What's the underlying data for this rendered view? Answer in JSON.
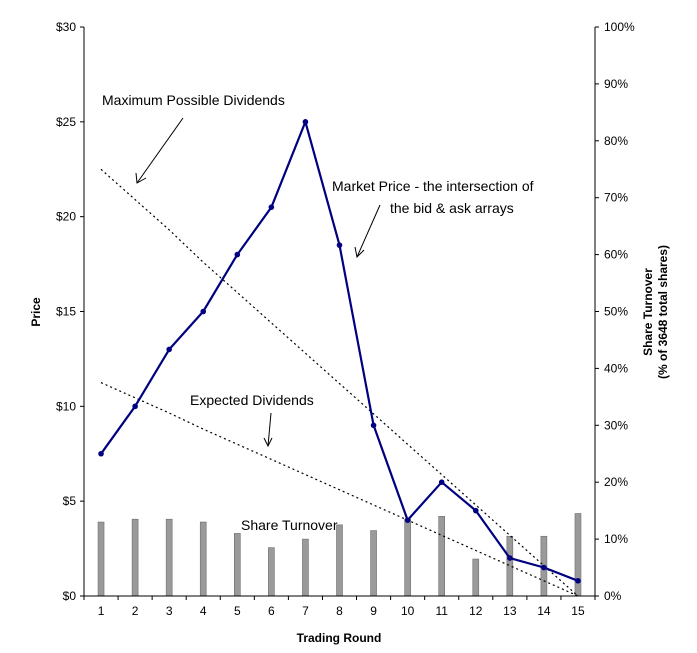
{
  "chart_data": {
    "type": "line",
    "categories": [
      "1",
      "2",
      "3",
      "4",
      "5",
      "6",
      "7",
      "8",
      "9",
      "10",
      "11",
      "12",
      "13",
      "14",
      "15"
    ],
    "xlabel": "Trading Round",
    "ylabel": "Price",
    "y2label_line1": "Share Turnover",
    "y2label_line2": "(% of 3648 total shares)",
    "ylim": [
      0,
      30
    ],
    "y_ticks": [
      0,
      5,
      10,
      15,
      20,
      25,
      30
    ],
    "y_tick_labels": [
      "$0",
      "$5",
      "$10",
      "$15",
      "$20",
      "$25",
      "$30"
    ],
    "y2lim": [
      0,
      100
    ],
    "y2_ticks": [
      0,
      10,
      20,
      30,
      40,
      50,
      60,
      70,
      80,
      90,
      100
    ],
    "y2_tick_labels": [
      "0%",
      "10%",
      "20%",
      "30%",
      "40%",
      "50%",
      "60%",
      "70%",
      "80%",
      "90%",
      "100%"
    ],
    "series": [
      {
        "name": "Market Price",
        "kind": "line",
        "axis": "left",
        "color": "#000080",
        "values": [
          7.5,
          10.0,
          13.0,
          15.0,
          18.0,
          20.5,
          25.0,
          18.5,
          9.0,
          4.0,
          6.0,
          4.5,
          2.0,
          1.5,
          0.8
        ]
      },
      {
        "name": "Maximum Possible Dividends",
        "kind": "dotted",
        "axis": "left",
        "color": "#000000",
        "values": [
          22.5,
          20.9,
          19.3,
          17.6,
          16.0,
          14.4,
          12.8,
          11.2,
          9.6,
          8.0,
          6.4,
          4.8,
          3.2,
          1.6,
          0.0
        ]
      },
      {
        "name": "Expected Dividends",
        "kind": "dotted",
        "axis": "left",
        "color": "#000000",
        "values": [
          11.25,
          10.45,
          9.65,
          8.8,
          8.0,
          7.2,
          6.4,
          5.6,
          4.8,
          4.0,
          3.2,
          2.4,
          1.6,
          0.8,
          0.0
        ]
      },
      {
        "name": "Share Turnover",
        "kind": "bar",
        "axis": "right",
        "color": "#808080",
        "values": [
          13.0,
          13.5,
          13.5,
          13.0,
          11.0,
          8.5,
          10.0,
          12.5,
          11.5,
          13.5,
          14.0,
          6.5,
          10.5,
          10.5,
          14.5
        ]
      }
    ],
    "annotations": {
      "max_dividends": "Maximum Possible Dividends",
      "market_price_line1": "Market Price - the intersection of",
      "market_price_line2": "the bid & ask arrays",
      "expected_dividends": "Expected Dividends",
      "share_turnover": "Share Turnover"
    }
  }
}
